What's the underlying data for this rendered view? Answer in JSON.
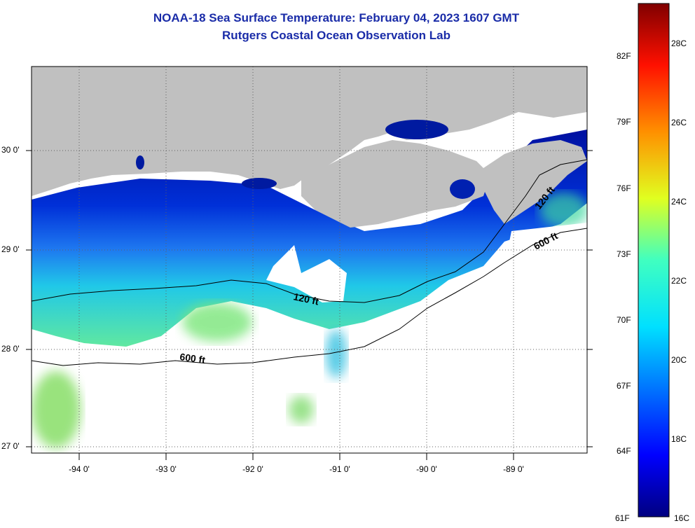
{
  "title_line1": "NOAA-18 Sea Surface Temperature:  February 04, 2023 1607 GMT",
  "title_line2": "Rutgers Coastal Ocean Observation Lab",
  "lat_labels": [
    "30 0'",
    "29 0'",
    "28 0'",
    "27 0'"
  ],
  "lon_labels": [
    "-94 0'",
    "-93 0'",
    "-92 0'",
    "-91 0'",
    "-90 0'",
    "-89 0'"
  ],
  "contours": {
    "shallow": "120 ft",
    "deep": "600 ft"
  },
  "colorbar": {
    "fahrenheit": [
      "82F",
      "79F",
      "76F",
      "73F",
      "70F",
      "67F",
      "64F",
      "61F"
    ],
    "celsius": [
      "28C",
      "26C",
      "24C",
      "22C",
      "20C",
      "18C",
      "16C"
    ]
  },
  "colors": {
    "land": "#c0c0c0",
    "cloud": "#ffffff",
    "cold": "#0018b0",
    "warm": "#8a0000"
  }
}
